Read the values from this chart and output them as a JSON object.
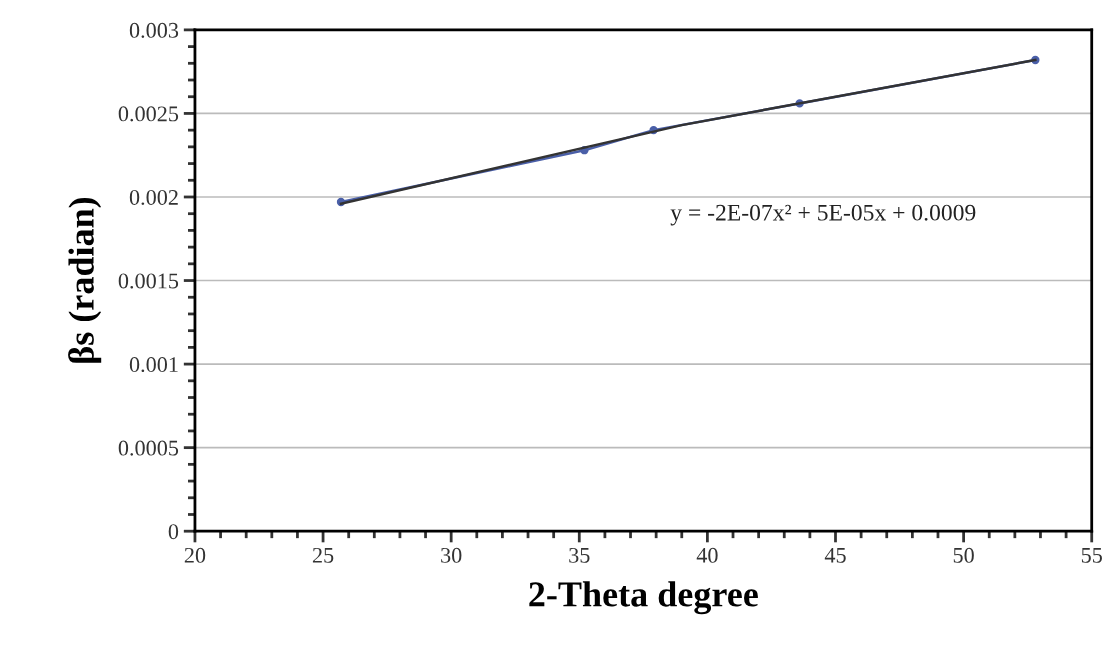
{
  "chart_data": {
    "type": "line",
    "xlabel": "2-Theta degree",
    "ylabel": "βs (radian)",
    "series": [
      {
        "color": "#4a5fa8",
        "marker": "circle",
        "x": [
          25.7,
          35.2,
          37.9,
          43.6,
          52.8
        ],
        "values": [
          0.00197,
          0.00228,
          0.0024,
          0.00256,
          0.00282
        ]
      },
      {
        "color": "#333333",
        "marker": "none",
        "x": [
          25.7,
          39.0,
          52.8
        ],
        "values": [
          0.00196,
          0.00243,
          0.00282
        ]
      }
    ],
    "annotations": [
      "y = -2E-07x² + 5E-05x + 0.0009"
    ],
    "xlim": [
      20,
      55
    ],
    "xticks": [
      20,
      25,
      30,
      35,
      40,
      45,
      50,
      55
    ],
    "ylim": [
      0,
      0.003
    ],
    "yticks": [
      {
        "value": 0,
        "label": "0"
      },
      0.0005,
      0.001,
      0.0015,
      0.002,
      0.0025,
      0.003
    ],
    "grid": "y",
    "legend": false
  }
}
